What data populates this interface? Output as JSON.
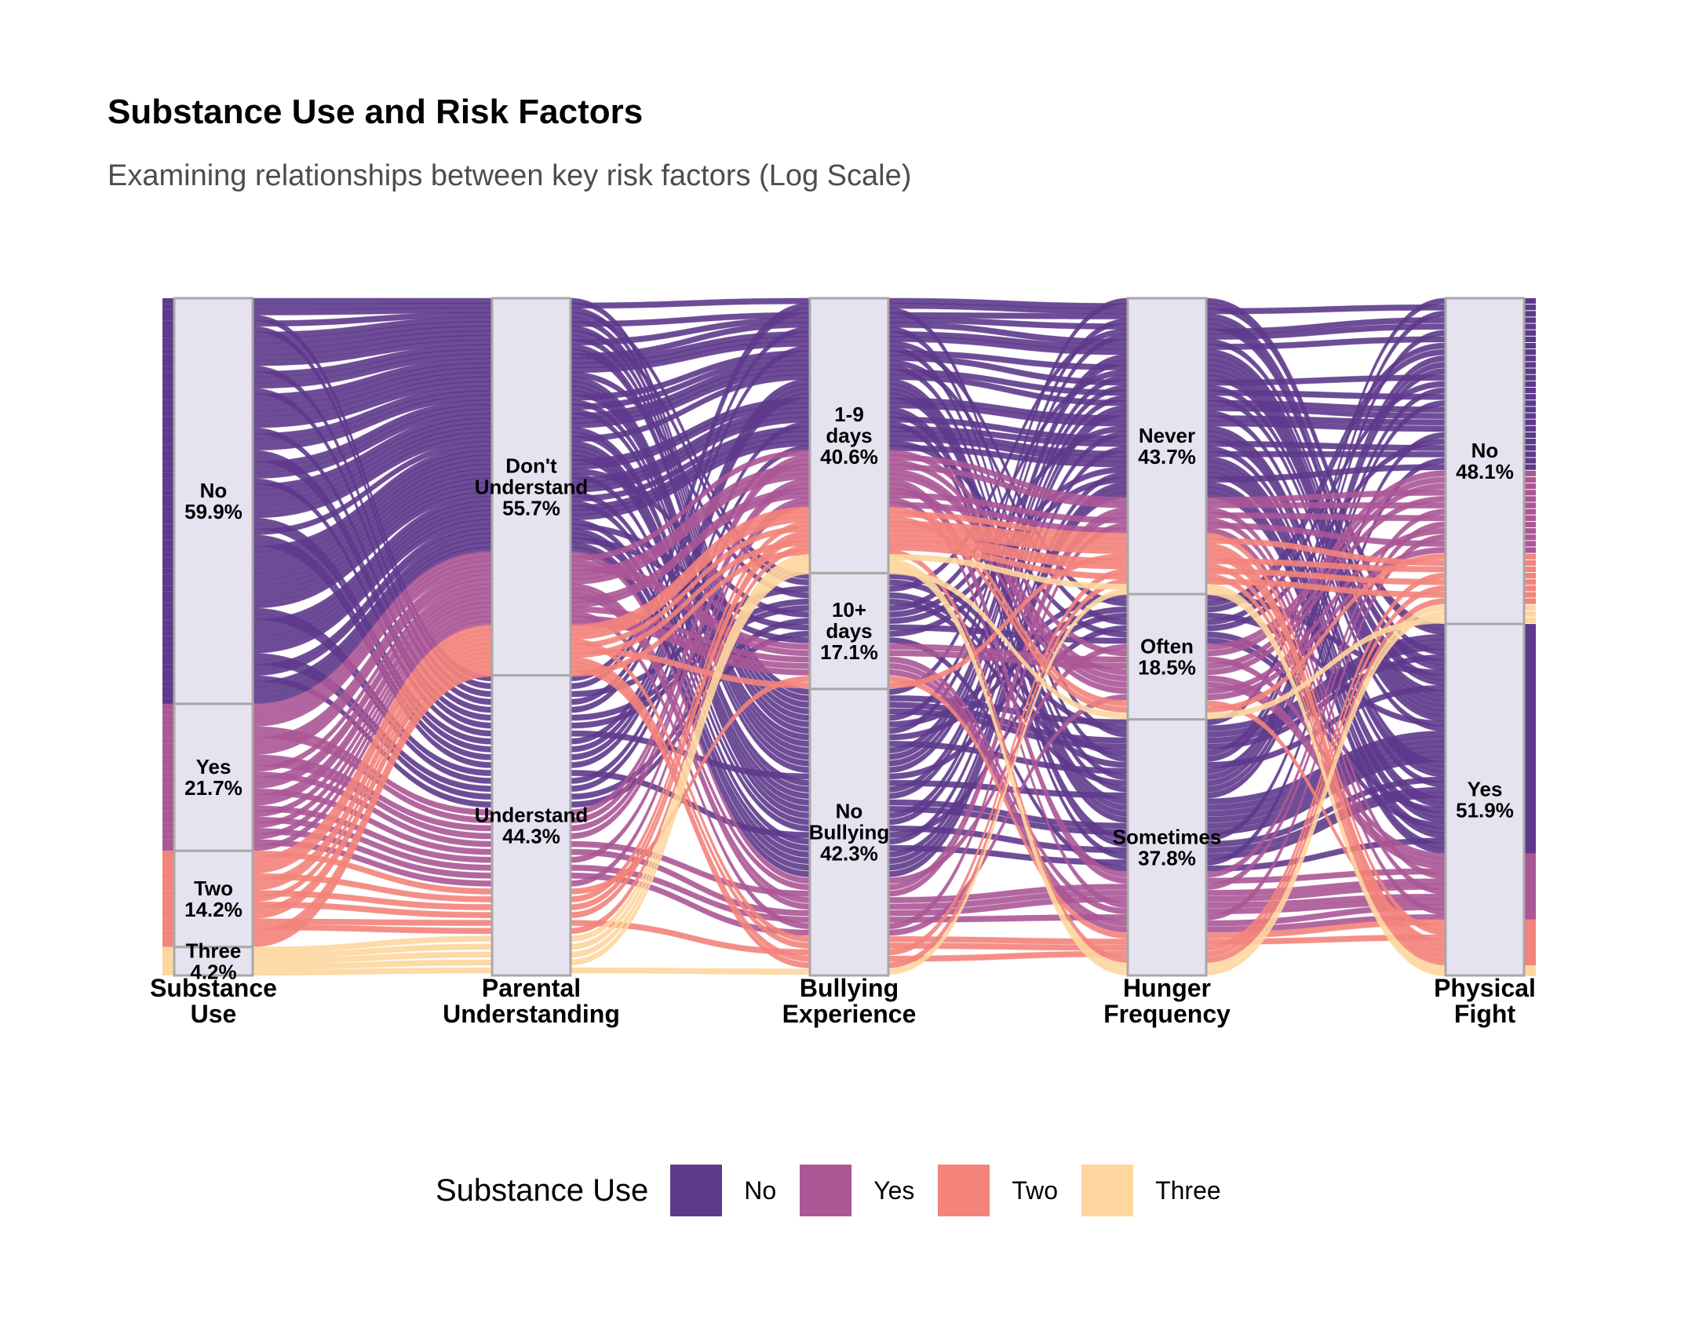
{
  "title": "Substance Use and Risk Factors",
  "subtitle": "Examining relationships between key risk factors (Log Scale)",
  "legend": {
    "title": "Substance Use",
    "items": [
      {
        "label": "No",
        "color": "#5e3a8c"
      },
      {
        "label": "Yes",
        "color": "#ab5796"
      },
      {
        "label": "Two",
        "color": "#f3837b"
      },
      {
        "label": "Three",
        "color": "#fed69e"
      }
    ]
  },
  "chart_data": {
    "type": "alluvial",
    "title": "Substance Use and Risk Factors",
    "subtitle": "Examining relationships between key risk factors (Log Scale)",
    "fill_variable": "Substance Use",
    "axes": [
      {
        "label": [
          "Substance",
          "Use"
        ],
        "strata": [
          {
            "label": [
              "No",
              "59.9%"
            ],
            "share": 59.9
          },
          {
            "label": [
              "Yes",
              "21.7%"
            ],
            "share": 21.7
          },
          {
            "label": [
              "Two",
              "14.2%"
            ],
            "share": 14.2
          },
          {
            "label": [
              "Three",
              "4.2%"
            ],
            "share": 4.2
          }
        ]
      },
      {
        "label": [
          "Parental",
          "Understanding"
        ],
        "strata": [
          {
            "label": [
              "Don't",
              "Understand",
              "55.7%"
            ],
            "share": 55.7
          },
          {
            "label": [
              "Understand",
              "44.3%"
            ],
            "share": 44.3
          }
        ]
      },
      {
        "label": [
          "Bullying",
          "Experience"
        ],
        "strata": [
          {
            "label": [
              "1-9",
              "days",
              "40.6%"
            ],
            "share": 40.6
          },
          {
            "label": [
              "10+",
              "days",
              "17.1%"
            ],
            "share": 17.1
          },
          {
            "label": [
              "No",
              "Bullying",
              "42.3%"
            ],
            "share": 42.3
          }
        ]
      },
      {
        "label": [
          "Hunger",
          "Frequency"
        ],
        "strata": [
          {
            "label": [
              "Never",
              "43.7%"
            ],
            "share": 43.7
          },
          {
            "label": [
              "Often",
              "18.5%"
            ],
            "share": 18.5
          },
          {
            "label": [
              "Sometimes",
              "37.8%"
            ],
            "share": 37.8
          }
        ]
      },
      {
        "label": [
          "Physical",
          "Fight"
        ],
        "strata": [
          {
            "label": [
              "No",
              "48.1%"
            ],
            "share": 48.1
          },
          {
            "label": [
              "Yes",
              "51.9%"
            ],
            "share": 51.9
          }
        ]
      }
    ],
    "series": [
      {
        "name": "No",
        "color": "#5e3a8c"
      },
      {
        "name": "Yes",
        "color": "#ab5796"
      },
      {
        "name": "Two",
        "color": "#f3837b"
      },
      {
        "name": "Three",
        "color": "#fed69e"
      }
    ],
    "legend_position": "bottom",
    "grid": false
  }
}
